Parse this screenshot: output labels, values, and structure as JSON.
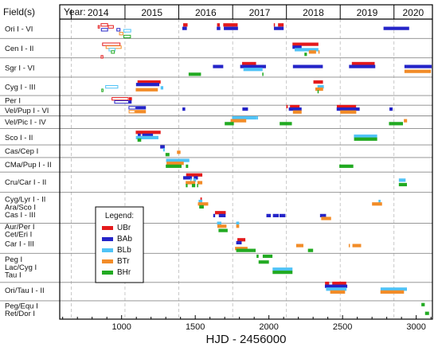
{
  "chart_data": {
    "type": "gantt",
    "xlabel": "HJD - 2456000",
    "x_ticks": [
      1000,
      1500,
      2000,
      2500,
      3000
    ],
    "xlim": [
      580,
      3110
    ],
    "header_fields_label": "Field(s)",
    "header_year_label": "Year:",
    "years": [
      {
        "label": "2014",
        "start": 658,
        "end": 1023
      },
      {
        "label": "2015",
        "start": 1023,
        "end": 1388
      },
      {
        "label": "2016",
        "start": 1388,
        "end": 1754
      },
      {
        "label": "2017",
        "start": 1754,
        "end": 2119
      },
      {
        "label": "2018",
        "start": 2119,
        "end": 2484
      },
      {
        "label": "2019",
        "start": 2484,
        "end": 2849
      },
      {
        "label": "2020",
        "start": 2849,
        "end": 3110
      }
    ],
    "legend": {
      "title": "Legend:",
      "entries": [
        {
          "name": "UBr",
          "color": "#e41a1c"
        },
        {
          "name": "BAb",
          "color": "#2424c8"
        },
        {
          "name": "BLb",
          "color": "#4fc3f7"
        },
        {
          "name": "BTr",
          "color": "#f28c28"
        },
        {
          "name": "BHr",
          "color": "#22aa22"
        }
      ]
    },
    "fields": [
      {
        "label": "Ori I - VI",
        "y": 0.0
      },
      {
        "label": "Cen I - II",
        "y": 1.0
      },
      {
        "label": "Sgr I - VI",
        "y": 2.0
      },
      {
        "label": "Cyg I - III",
        "y": 3.0
      },
      {
        "label": "Per I",
        "y": 3.7
      },
      {
        "label": "Vel/Pup I - VI",
        "y": 4.2
      },
      {
        "label": "Vel/Pic I - IV",
        "y": 4.8
      },
      {
        "label": "Sco I - II",
        "y": 5.6
      },
      {
        "label": "Cas/Cep I",
        "y": 6.3
      },
      {
        "label": "CMa/Pup I - II",
        "y": 7.0
      },
      {
        "label": "Cru/Car I - II",
        "y": 7.9
      },
      {
        "label": "Cyg/Lyr I - II",
        "y": 8.8
      },
      {
        "label": "Ara/Sco I",
        "y": 9.2
      },
      {
        "label": "Cas I - III",
        "y": 9.6
      },
      {
        "label": "Aur/Per I",
        "y": 10.2
      },
      {
        "label": "Cet/Eri I",
        "y": 10.6
      },
      {
        "label": "Car I - III",
        "y": 11.1
      },
      {
        "label": "Peg I",
        "y": 11.9
      },
      {
        "label": "Lac/Cyg I",
        "y": 12.3
      },
      {
        "label": "Tau I",
        "y": 12.7
      },
      {
        "label": "Ori/Tau I - II",
        "y": 13.5
      },
      {
        "label": "Peg/Equ I",
        "y": 14.3
      },
      {
        "label": "Ret/Dor I",
        "y": 14.7
      }
    ],
    "separators": [
      0.5,
      1.5,
      2.5,
      3.45,
      3.95,
      4.5,
      5.15,
      6.0,
      6.65,
      7.4,
      8.45,
      10.05,
      11.6,
      13.1,
      14.05
    ],
    "ylim": [
      -0.5,
      15.0
    ],
    "bars": [
      {
        "start": 858,
        "end": 908,
        "y": -0.2,
        "color": "UBr",
        "hollow": true
      },
      {
        "start": 907,
        "end": 947,
        "y": -0.1,
        "color": "UBr",
        "hollow": true
      },
      {
        "start": 838,
        "end": 853,
        "y": -0.1,
        "color": "UBr",
        "hollow": true
      },
      {
        "start": 860,
        "end": 908,
        "y": 0.05,
        "color": "BAb",
        "hollow": true
      },
      {
        "start": 965,
        "end": 992,
        "y": 0.05,
        "color": "BAb",
        "hollow": true
      },
      {
        "start": 1012,
        "end": 1065,
        "y": 0.1,
        "color": "BLb",
        "hollow": true
      },
      {
        "start": 983,
        "end": 1012,
        "y": 0.25,
        "color": "BTr",
        "hollow": true
      },
      {
        "start": 1012,
        "end": 1063,
        "y": 0.4,
        "color": "BHr",
        "hollow": true
      },
      {
        "start": 1418,
        "end": 1448,
        "y": -0.2,
        "color": "UBr"
      },
      {
        "start": 1412,
        "end": 1443,
        "y": -0.02,
        "color": "BAb"
      },
      {
        "start": 1648,
        "end": 1667,
        "y": -0.2,
        "color": "UBr"
      },
      {
        "start": 1690,
        "end": 1788,
        "y": -0.2,
        "color": "UBr"
      },
      {
        "start": 1646,
        "end": 1670,
        "y": -0.02,
        "color": "BAb"
      },
      {
        "start": 1694,
        "end": 1790,
        "y": -0.02,
        "color": "BAb"
      },
      {
        "start": 2033,
        "end": 2041,
        "y": -0.2,
        "color": "UBr"
      },
      {
        "start": 2062,
        "end": 2100,
        "y": -0.2,
        "color": "UBr"
      },
      {
        "start": 2034,
        "end": 2100,
        "y": -0.02,
        "color": "BAb"
      },
      {
        "start": 2778,
        "end": 2952,
        "y": -0.02,
        "color": "BAb"
      },
      {
        "start": 868,
        "end": 992,
        "y": 0.8,
        "color": "UBr",
        "hollow": true
      },
      {
        "start": 892,
        "end": 1000,
        "y": 0.95,
        "color": "BTr",
        "hollow": true
      },
      {
        "start": 912,
        "end": 958,
        "y": 1.08,
        "color": "BLb",
        "hollow": true
      },
      {
        "start": 928,
        "end": 954,
        "y": 1.2,
        "color": "BHr",
        "hollow": true
      },
      {
        "start": 2160,
        "end": 2336,
        "y": 0.8,
        "color": "UBr"
      },
      {
        "start": 2160,
        "end": 2222,
        "y": 0.95,
        "color": "BAb"
      },
      {
        "start": 2175,
        "end": 2336,
        "y": 1.08,
        "color": "BLb"
      },
      {
        "start": 2271,
        "end": 2320,
        "y": 1.2,
        "color": "BTr"
      },
      {
        "start": 2241,
        "end": 2258,
        "y": 1.32,
        "color": "BHr"
      },
      {
        "start": 2336,
        "end": 2344,
        "y": 1.2,
        "color": "BTr"
      },
      {
        "start": 858,
        "end": 876,
        "y": 1.45,
        "color": "UBr",
        "hollow": true
      },
      {
        "start": 1818,
        "end": 1913,
        "y": 1.8,
        "color": "UBr"
      },
      {
        "start": 1805,
        "end": 1980,
        "y": 1.95,
        "color": "BAb"
      },
      {
        "start": 1620,
        "end": 1690,
        "y": 1.95,
        "color": "BAb"
      },
      {
        "start": 1827,
        "end": 1957,
        "y": 2.1,
        "color": "BLb"
      },
      {
        "start": 1455,
        "end": 1539,
        "y": 2.35,
        "color": "BHr"
      },
      {
        "start": 1955,
        "end": 1962,
        "y": 2.35,
        "color": "BHr"
      },
      {
        "start": 2163,
        "end": 2366,
        "y": 1.95,
        "color": "BAb"
      },
      {
        "start": 2563,
        "end": 2718,
        "y": 1.8,
        "color": "UBr"
      },
      {
        "start": 2544,
        "end": 2722,
        "y": 1.95,
        "color": "BAb"
      },
      {
        "start": 2920,
        "end": 3105,
        "y": 1.95,
        "color": "BAb"
      },
      {
        "start": 2920,
        "end": 3100,
        "y": 2.2,
        "color": "BTr"
      },
      {
        "start": 1108,
        "end": 1265,
        "y": 2.75,
        "color": "UBr"
      },
      {
        "start": 1098,
        "end": 1256,
        "y": 2.88,
        "color": "BAb"
      },
      {
        "start": 889,
        "end": 977,
        "y": 3.0,
        "color": "BLb",
        "hollow": true
      },
      {
        "start": 1265,
        "end": 1283,
        "y": 3.05,
        "color": "BLb"
      },
      {
        "start": 1096,
        "end": 1246,
        "y": 3.15,
        "color": "BTr"
      },
      {
        "start": 862,
        "end": 877,
        "y": 3.18,
        "color": "BHr",
        "hollow": true
      },
      {
        "start": 2302,
        "end": 2367,
        "y": 2.75,
        "color": "UBr"
      },
      {
        "start": 2330,
        "end": 2373,
        "y": 3.0,
        "color": "BLb"
      },
      {
        "start": 2315,
        "end": 2368,
        "y": 3.12,
        "color": "BTr"
      },
      {
        "start": 2330,
        "end": 2336,
        "y": 3.25,
        "color": "BHr"
      },
      {
        "start": 932,
        "end": 1048,
        "y": 3.62,
        "color": "UBr",
        "hollow": true
      },
      {
        "start": 950,
        "end": 1050,
        "y": 3.78,
        "color": "BAb",
        "hollow": true
      },
      {
        "start": 1050,
        "end": 1070,
        "y": 3.62,
        "color": "UBr"
      },
      {
        "start": 1050,
        "end": 1068,
        "y": 3.78,
        "color": "BAb"
      },
      {
        "start": 1047,
        "end": 1098,
        "y": 4.08,
        "color": "BAb",
        "hollow": true
      },
      {
        "start": 1098,
        "end": 1165,
        "y": 4.08,
        "color": "BAb"
      },
      {
        "start": 1048,
        "end": 1092,
        "y": 4.28,
        "color": "BTr",
        "hollow": true
      },
      {
        "start": 1092,
        "end": 1165,
        "y": 4.28,
        "color": "BTr"
      },
      {
        "start": 1413,
        "end": 1432,
        "y": 4.15,
        "color": "BAb"
      },
      {
        "start": 1820,
        "end": 1858,
        "y": 4.15,
        "color": "BAb"
      },
      {
        "start": 2118,
        "end": 2128,
        "y": 4.02,
        "color": "UBr"
      },
      {
        "start": 2143,
        "end": 2208,
        "y": 4.02,
        "color": "UBr"
      },
      {
        "start": 2135,
        "end": 2222,
        "y": 4.15,
        "color": "BAb"
      },
      {
        "start": 2163,
        "end": 2222,
        "y": 4.3,
        "color": "BTr"
      },
      {
        "start": 2461,
        "end": 2592,
        "y": 4.02,
        "color": "UBr"
      },
      {
        "start": 2460,
        "end": 2616,
        "y": 4.15,
        "color": "BAb"
      },
      {
        "start": 2484,
        "end": 2593,
        "y": 4.3,
        "color": "BTr"
      },
      {
        "start": 2818,
        "end": 2840,
        "y": 4.15,
        "color": "BAb"
      },
      {
        "start": 1750,
        "end": 1915,
        "y": 4.6,
        "color": "BLb"
      },
      {
        "start": 1740,
        "end": 1846,
        "y": 4.75,
        "color": "BTr"
      },
      {
        "start": 1700,
        "end": 1762,
        "y": 4.9,
        "color": "BHr"
      },
      {
        "start": 1916,
        "end": 1926,
        "y": 4.6,
        "color": "BLb"
      },
      {
        "start": 2073,
        "end": 2156,
        "y": 4.9,
        "color": "BHr"
      },
      {
        "start": 2916,
        "end": 2938,
        "y": 4.75,
        "color": "BTr"
      },
      {
        "start": 2815,
        "end": 2910,
        "y": 4.9,
        "color": "BHr"
      },
      {
        "start": 1096,
        "end": 1265,
        "y": 5.35,
        "color": "UBr"
      },
      {
        "start": 1110,
        "end": 1130,
        "y": 5.5,
        "color": "BAb"
      },
      {
        "start": 1140,
        "end": 1213,
        "y": 5.5,
        "color": "BAb"
      },
      {
        "start": 1097,
        "end": 1250,
        "y": 5.62,
        "color": "BLb"
      },
      {
        "start": 1108,
        "end": 1133,
        "y": 5.75,
        "color": "BHr"
      },
      {
        "start": 2577,
        "end": 2735,
        "y": 5.55,
        "color": "BLb"
      },
      {
        "start": 2578,
        "end": 2735,
        "y": 5.7,
        "color": "BHr"
      },
      {
        "start": 1262,
        "end": 1293,
        "y": 6.1,
        "color": "BAb"
      },
      {
        "start": 1282,
        "end": 1293,
        "y": 6.25,
        "color": "BLb"
      },
      {
        "start": 1376,
        "end": 1400,
        "y": 6.38,
        "color": "BTr"
      },
      {
        "start": 1298,
        "end": 1325,
        "y": 6.5,
        "color": "BHr"
      },
      {
        "start": 1302,
        "end": 1460,
        "y": 6.8,
        "color": "BLb"
      },
      {
        "start": 1305,
        "end": 1422,
        "y": 6.95,
        "color": "BTr"
      },
      {
        "start": 1300,
        "end": 1407,
        "y": 7.1,
        "color": "BHr"
      },
      {
        "start": 1436,
        "end": 1452,
        "y": 7.1,
        "color": "BHr"
      },
      {
        "start": 2478,
        "end": 2573,
        "y": 7.1,
        "color": "BHr"
      },
      {
        "start": 1438,
        "end": 1548,
        "y": 7.55,
        "color": "UBr"
      },
      {
        "start": 1418,
        "end": 1477,
        "y": 7.7,
        "color": "BAb"
      },
      {
        "start": 1490,
        "end": 1518,
        "y": 7.7,
        "color": "BAb"
      },
      {
        "start": 1466,
        "end": 1474,
        "y": 7.82,
        "color": "BLb"
      },
      {
        "start": 1487,
        "end": 1506,
        "y": 7.82,
        "color": "BLb"
      },
      {
        "start": 1435,
        "end": 1500,
        "y": 7.95,
        "color": "BTr"
      },
      {
        "start": 1515,
        "end": 1548,
        "y": 7.95,
        "color": "BTr"
      },
      {
        "start": 1436,
        "end": 1448,
        "y": 8.1,
        "color": "BHr"
      },
      {
        "start": 1477,
        "end": 1500,
        "y": 8.1,
        "color": "BHr"
      },
      {
        "start": 1512,
        "end": 1518,
        "y": 8.1,
        "color": "BHr"
      },
      {
        "start": 2882,
        "end": 2928,
        "y": 7.82,
        "color": "BLb"
      },
      {
        "start": 2882,
        "end": 2937,
        "y": 8.05,
        "color": "BHr"
      },
      {
        "start": 1535,
        "end": 1545,
        "y": 8.8,
        "color": "UBr"
      },
      {
        "start": 1523,
        "end": 1548,
        "y": 8.92,
        "color": "BLb"
      },
      {
        "start": 1518,
        "end": 1588,
        "y": 9.05,
        "color": "BTr"
      },
      {
        "start": 1527,
        "end": 1558,
        "y": 9.2,
        "color": "BHr"
      },
      {
        "start": 2744,
        "end": 2758,
        "y": 8.92,
        "color": "BLb"
      },
      {
        "start": 2700,
        "end": 2768,
        "y": 9.05,
        "color": "BTr"
      },
      {
        "start": 1634,
        "end": 1707,
        "y": 9.5,
        "color": "UBr"
      },
      {
        "start": 1622,
        "end": 1635,
        "y": 9.65,
        "color": "BAb"
      },
      {
        "start": 1660,
        "end": 1706,
        "y": 9.65,
        "color": "BAb"
      },
      {
        "start": 1983,
        "end": 2013,
        "y": 9.65,
        "color": "BAb"
      },
      {
        "start": 2027,
        "end": 2067,
        "y": 9.65,
        "color": "BAb"
      },
      {
        "start": 2072,
        "end": 2112,
        "y": 9.65,
        "color": "BAb"
      },
      {
        "start": 2347,
        "end": 2388,
        "y": 9.65,
        "color": "BAb"
      },
      {
        "start": 2355,
        "end": 2422,
        "y": 9.8,
        "color": "BTr"
      },
      {
        "start": 1648,
        "end": 1677,
        "y": 10.05,
        "color": "BLb"
      },
      {
        "start": 1778,
        "end": 1798,
        "y": 10.05,
        "color": "BLb"
      },
      {
        "start": 1650,
        "end": 1712,
        "y": 10.2,
        "color": "BTr"
      },
      {
        "start": 1778,
        "end": 1798,
        "y": 10.2,
        "color": "BTr"
      },
      {
        "start": 1658,
        "end": 1720,
        "y": 10.42,
        "color": "BHr"
      },
      {
        "start": 1786,
        "end": 1840,
        "y": 10.9,
        "color": "UBr"
      },
      {
        "start": 1778,
        "end": 1815,
        "y": 11.05,
        "color": "BAb"
      },
      {
        "start": 2185,
        "end": 2234,
        "y": 11.2,
        "color": "BTr"
      },
      {
        "start": 2542,
        "end": 2548,
        "y": 11.2,
        "color": "BTr"
      },
      {
        "start": 2567,
        "end": 2626,
        "y": 11.2,
        "color": "BTr"
      },
      {
        "start": 1770,
        "end": 1855,
        "y": 11.35,
        "color": "BTr"
      },
      {
        "start": 1778,
        "end": 1910,
        "y": 11.45,
        "color": "BHr"
      },
      {
        "start": 2265,
        "end": 2300,
        "y": 11.45,
        "color": "BHr"
      },
      {
        "start": 1916,
        "end": 1930,
        "y": 11.75,
        "color": "BHr"
      },
      {
        "start": 1958,
        "end": 2024,
        "y": 11.75,
        "color": "BHr"
      },
      {
        "start": 1930,
        "end": 2000,
        "y": 12.05,
        "color": "BHr"
      },
      {
        "start": 2025,
        "end": 2160,
        "y": 12.42,
        "color": "BLb"
      },
      {
        "start": 2025,
        "end": 2160,
        "y": 12.58,
        "color": "BHr"
      },
      {
        "start": 2381,
        "end": 2409,
        "y": 13.15,
        "color": "UBr"
      },
      {
        "start": 2430,
        "end": 2525,
        "y": 13.15,
        "color": "UBr"
      },
      {
        "start": 2380,
        "end": 2532,
        "y": 13.3,
        "color": "BAb"
      },
      {
        "start": 2388,
        "end": 2527,
        "y": 13.45,
        "color": "BLb"
      },
      {
        "start": 2416,
        "end": 2517,
        "y": 13.6,
        "color": "BTr"
      },
      {
        "start": 2758,
        "end": 2937,
        "y": 13.45,
        "color": "BLb"
      },
      {
        "start": 2757,
        "end": 2917,
        "y": 13.6,
        "color": "BTr"
      },
      {
        "start": 3035,
        "end": 3058,
        "y": 14.25,
        "color": "BHr"
      },
      {
        "start": 3060,
        "end": 3087,
        "y": 14.7,
        "color": "BHr"
      }
    ]
  }
}
